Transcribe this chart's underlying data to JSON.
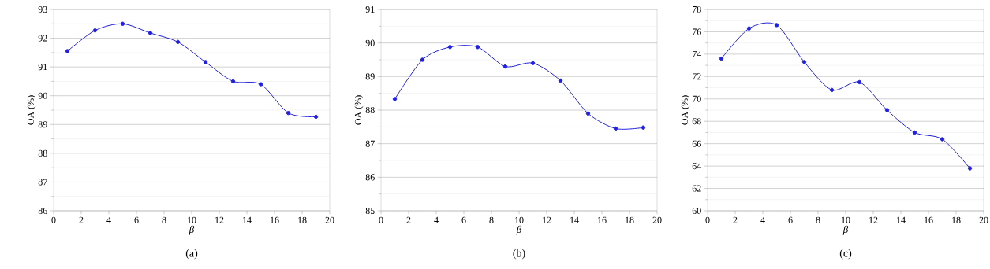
{
  "chart_data": [
    {
      "type": "line",
      "title": "(a)",
      "xlabel": "β",
      "ylabel": "OA (%)",
      "x": [
        1,
        3,
        5,
        7,
        9,
        11,
        13,
        15,
        17,
        19
      ],
      "series": [
        {
          "color": "#2020e0",
          "values": [
            91.55,
            92.27,
            92.5,
            92.18,
            91.87,
            91.17,
            90.5,
            90.4,
            89.4,
            89.27
          ]
        }
      ],
      "xlim": [
        0,
        20
      ],
      "xticks": [
        0,
        2,
        4,
        6,
        8,
        10,
        12,
        14,
        16,
        18,
        20
      ],
      "ylim": [
        86,
        93
      ],
      "yticks": [
        86,
        87,
        88,
        89,
        90,
        91,
        92,
        93
      ],
      "grid": "y",
      "marker": "circle",
      "line_style": "solid"
    },
    {
      "type": "line",
      "title": "(b)",
      "xlabel": "β",
      "ylabel": "OA (%)",
      "x": [
        1,
        3,
        5,
        7,
        9,
        11,
        13,
        15,
        17,
        19
      ],
      "series": [
        {
          "color": "#2020e0",
          "values": [
            88.33,
            89.5,
            89.88,
            89.88,
            89.3,
            89.4,
            88.88,
            87.9,
            87.45,
            87.48
          ]
        }
      ],
      "xlim": [
        0,
        20
      ],
      "xticks": [
        0,
        2,
        4,
        6,
        8,
        10,
        12,
        14,
        16,
        18,
        20
      ],
      "ylim": [
        85,
        91
      ],
      "yticks": [
        85,
        86,
        87,
        88,
        89,
        90,
        91
      ],
      "grid": "y",
      "marker": "circle",
      "line_style": "solid"
    },
    {
      "type": "line",
      "title": "(c)",
      "xlabel": "β",
      "ylabel": "OA (%)",
      "x": [
        1,
        3,
        5,
        7,
        9,
        11,
        13,
        15,
        17,
        19
      ],
      "series": [
        {
          "color": "#2020e0",
          "values": [
            73.6,
            76.3,
            76.6,
            73.3,
            70.8,
            71.5,
            69.0,
            67.0,
            66.4,
            63.8
          ]
        }
      ],
      "xlim": [
        0,
        20
      ],
      "xticks": [
        0,
        2,
        4,
        6,
        8,
        10,
        12,
        14,
        16,
        18,
        20
      ],
      "ylim": [
        60,
        78
      ],
      "yticks": [
        60,
        62,
        64,
        66,
        68,
        70,
        72,
        74,
        76,
        78
      ],
      "grid": "y",
      "marker": "circle",
      "line_style": "solid"
    }
  ]
}
